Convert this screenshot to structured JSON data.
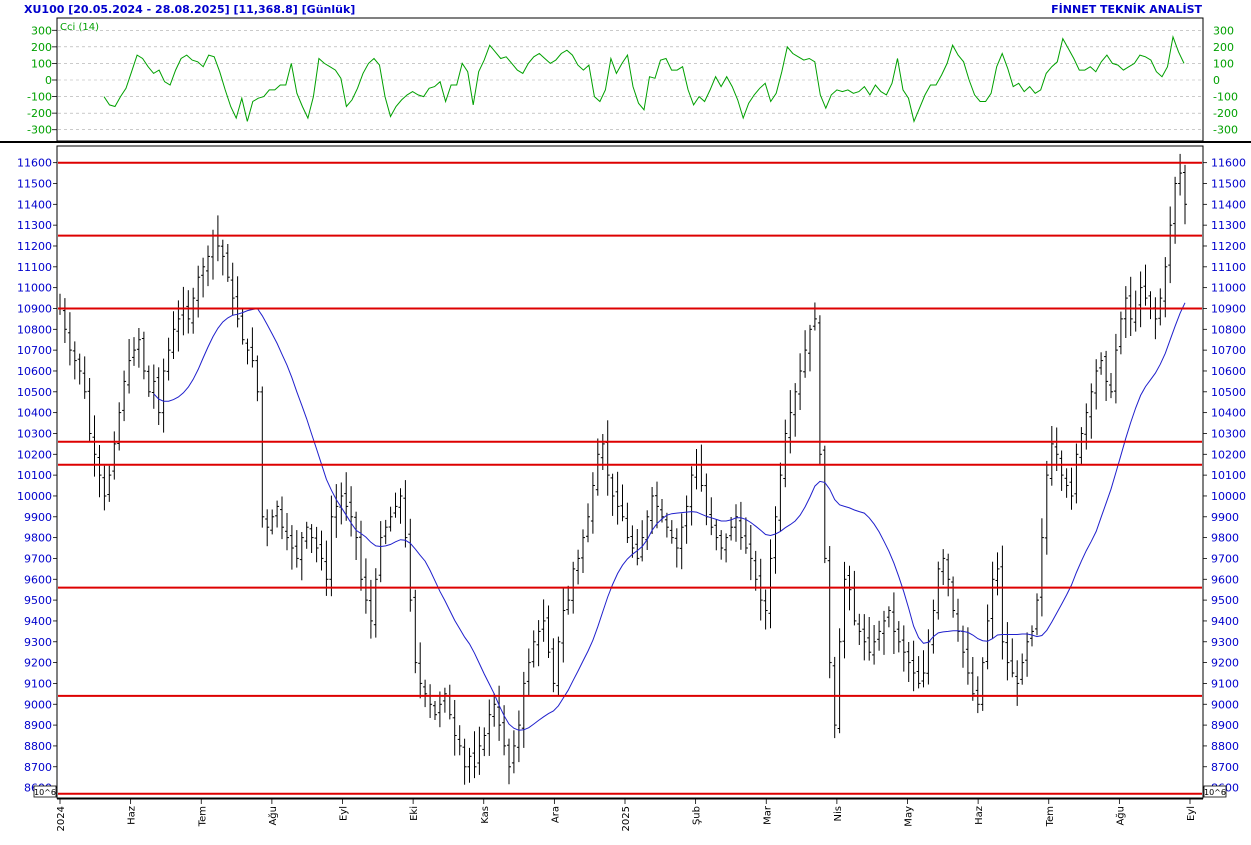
{
  "header": {
    "title": "XU100  [20.05.2024 - 28.08.2025]  [11,368.8]  [Günlük]",
    "brand": "FİNNET TEKNİK ANALİST"
  },
  "indicator": {
    "label": "Cci (14)",
    "ticks": [
      "300",
      "200",
      "100",
      "0",
      "-100",
      "-200",
      "-300"
    ],
    "values": [
      -100,
      -150,
      -160,
      -100,
      -50,
      50,
      150,
      130,
      80,
      40,
      60,
      -10,
      -30,
      60,
      130,
      150,
      120,
      110,
      80,
      150,
      140,
      50,
      -60,
      -160,
      -230,
      -110,
      -250,
      -130,
      -110,
      -100,
      -60,
      -60,
      -30,
      -30,
      100,
      -80,
      -160,
      -230,
      -100,
      130,
      100,
      80,
      60,
      10,
      -160,
      -120,
      -50,
      40,
      100,
      130,
      90,
      -100,
      -220,
      -160,
      -120,
      -90,
      -70,
      -90,
      -100,
      -50,
      -40,
      -10,
      -130,
      -30,
      -30,
      100,
      50,
      -150,
      50,
      120,
      210,
      170,
      130,
      140,
      100,
      60,
      40,
      100,
      140,
      160,
      130,
      100,
      120,
      160,
      180,
      150,
      90,
      60,
      90,
      -100,
      -130,
      -60,
      130,
      40,
      100,
      150,
      -40,
      -140,
      -180,
      20,
      10,
      120,
      130,
      60,
      60,
      80,
      -60,
      -150,
      -100,
      -130,
      -60,
      20,
      -40,
      20,
      -40,
      -120,
      -230,
      -140,
      -90,
      -50,
      -20,
      -130,
      -80,
      50,
      200,
      160,
      140,
      120,
      130,
      110,
      -90,
      -170,
      -90,
      -60,
      -70,
      -60,
      -80,
      -70,
      -40,
      -90,
      -30,
      -70,
      -90,
      -20,
      130,
      -60,
      -110,
      -250,
      -170,
      -90,
      -30,
      -30,
      30,
      100,
      210,
      150,
      110,
      0,
      -90,
      -130,
      -130,
      -80,
      80,
      160,
      70,
      -40,
      -20,
      -70,
      -40,
      -80,
      -60,
      40,
      80,
      110,
      250,
      190,
      130,
      60,
      60,
      80,
      50,
      110,
      150,
      100,
      90,
      60,
      80,
      100,
      150,
      140,
      120,
      50,
      20,
      80,
      260,
      170,
      100
    ]
  },
  "axes": {
    "price_ticks": [
      "11600",
      "11500",
      "11400",
      "11300",
      "11200",
      "11100",
      "11000",
      "10900",
      "10800",
      "10700",
      "10600",
      "10500",
      "10400",
      "10300",
      "10200",
      "10100",
      "10000",
      "9900",
      "9800",
      "9700",
      "9600",
      "9500",
      "9400",
      "9300",
      "9200",
      "9100",
      "9000",
      "8900",
      "8800",
      "8700",
      "8600"
    ],
    "scale_badge": "10^6",
    "dates": [
      "2024",
      "Haz",
      "Tem",
      "Ağu",
      "Eyl",
      "Eki",
      "Kas",
      "Ara",
      "2025",
      "Şub",
      "Mar",
      "Nis",
      "May",
      "Haz",
      "Tem",
      "Ağu",
      "Eyl"
    ]
  },
  "colors": {
    "cci": "#00a000",
    "moving_average": "#2020cc",
    "levels": "#dd0000",
    "bars": "#000000",
    "title": "#0000cc"
  },
  "chart_data": [
    {
      "type": "line",
      "name": "Cci (14)",
      "ylim": [
        -350,
        350
      ],
      "grid": true
    },
    {
      "type": "ohlc",
      "ylim": [
        8550,
        11680
      ],
      "horizontal_levels": [
        11600,
        11250,
        10900,
        10260,
        10150,
        9560,
        9040,
        8570
      ],
      "close": [
        10900,
        10800,
        10700,
        10650,
        10600,
        10500,
        10300,
        10200,
        10100,
        10000,
        10100,
        10250,
        10400,
        10550,
        10650,
        10700,
        10750,
        10600,
        10500,
        10550,
        10400,
        10600,
        10700,
        10800,
        10850,
        10900,
        10850,
        10950,
        11050,
        11100,
        11150,
        11250,
        11200,
        11150,
        11050,
        10950,
        10850,
        10750,
        10700,
        10650,
        10500,
        9900,
        9850,
        9900,
        9950,
        9850,
        9800,
        9750,
        9700,
        9800,
        9850,
        9800,
        9750,
        9700,
        9600,
        9900,
        9950,
        10000,
        9950,
        9900,
        9800,
        9600,
        9500,
        9400,
        9600,
        9800,
        9850,
        9900,
        9950,
        10000,
        9800,
        9500,
        9200,
        9100,
        9050,
        9000,
        8950,
        9000,
        9050,
        8950,
        8850,
        8800,
        8700,
        8750,
        8700,
        8800,
        8850,
        8950,
        9000,
        8900,
        8800,
        8700,
        8800,
        8900,
        9100,
        9200,
        9300,
        9350,
        9400,
        9250,
        9100,
        9300,
        9450,
        9500,
        9650,
        9700,
        9800,
        9900,
        10050,
        10200,
        10250,
        10100,
        10000,
        9950,
        9900,
        9800,
        9750,
        9700,
        9800,
        9900,
        10000,
        9950,
        9900,
        9850,
        9800,
        9750,
        9850,
        9950,
        10100,
        10150,
        10050,
        9900,
        9850,
        9800,
        9750,
        9800,
        9850,
        9900,
        9800,
        9750,
        9700,
        9600,
        9500,
        9450,
        9700,
        9900,
        10100,
        10300,
        10400,
        10500,
        10600,
        10700,
        10800,
        10850,
        10200,
        9700,
        9200,
        8900,
        9300,
        9600,
        9550,
        9400,
        9350,
        9300,
        9250,
        9300,
        9350,
        9400,
        9450,
        9350,
        9300,
        9250,
        9200,
        9150,
        9100,
        9150,
        9300,
        9450,
        9650,
        9700,
        9600,
        9450,
        9350,
        9250,
        9150,
        9050,
        9000,
        9200,
        9400,
        9600,
        9650,
        9300,
        9200,
        9150,
        9100,
        9200,
        9300,
        9350,
        9500,
        9800,
        10100,
        10250,
        10200,
        10100,
        10050,
        10000,
        10200,
        10300,
        10400,
        10500,
        10600,
        10650,
        10550,
        10500,
        10700,
        10850,
        10950,
        10850,
        10900,
        11000,
        10950,
        10900,
        10850,
        10950,
        11100,
        11300,
        11500,
        11550,
        11400
      ]
    }
  ]
}
